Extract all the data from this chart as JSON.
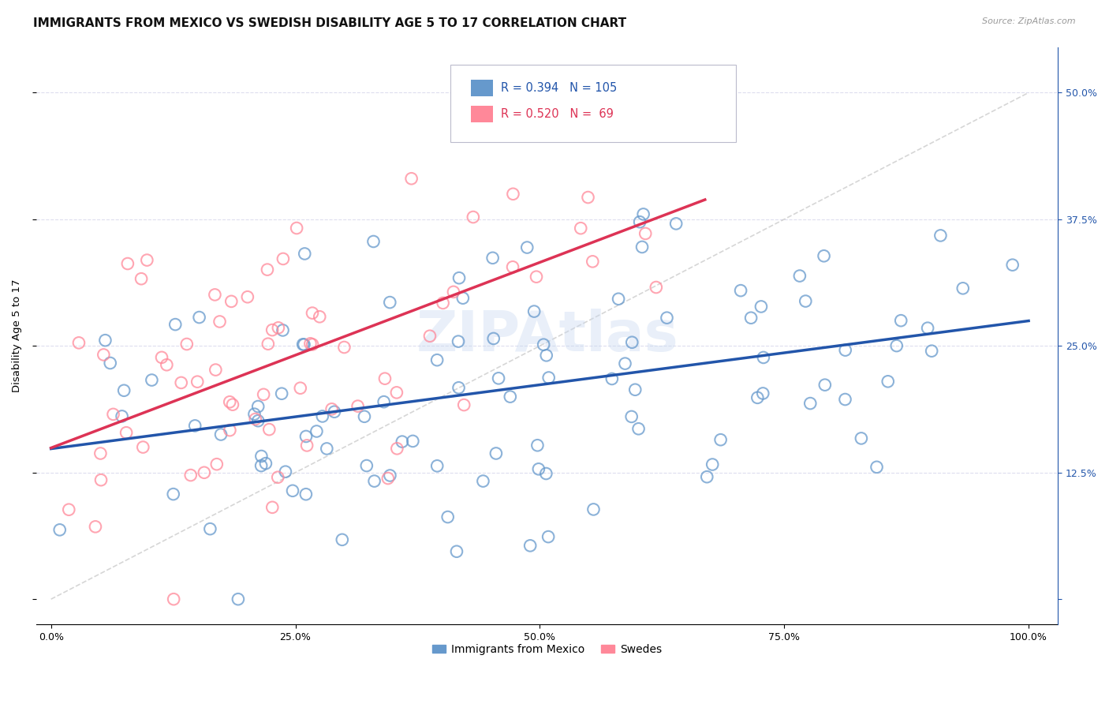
{
  "title": "IMMIGRANTS FROM MEXICO VS SWEDISH DISABILITY AGE 5 TO 17 CORRELATION CHART",
  "source": "Source: ZipAtlas.com",
  "ylabel": "Disability Age 5 to 17",
  "ytick_vals": [
    0.0,
    0.125,
    0.25,
    0.375,
    0.5
  ],
  "ytick_right_labels": [
    "",
    "12.5%",
    "25.0%",
    "37.5%",
    "50.0%"
  ],
  "xtick_vals": [
    0.0,
    0.25,
    0.5,
    0.75,
    1.0
  ],
  "xtick_labels": [
    "0.0%",
    "25.0%",
    "50.0%",
    "75.0%",
    "100.0%"
  ],
  "legend_label1": "Immigrants from Mexico",
  "legend_label2": "Swedes",
  "R1": 0.394,
  "N1": 105,
  "R2": 0.52,
  "N2": 69,
  "color_blue": "#6699CC",
  "color_pink": "#FF8899",
  "color_blue_line": "#2255AA",
  "color_pink_line": "#DD3355",
  "color_diag": "#BBBBBB",
  "color_grid": "#DDDDEE",
  "watermark_color": "#C8D8F0",
  "watermark_text": "ZIPAtlas",
  "background": "#FFFFFF",
  "title_fontsize": 11,
  "axis_label_fontsize": 9.5,
  "tick_fontsize": 9,
  "legend_fontsize": 10,
  "scatter_size": 110,
  "scatter_lw": 1.5,
  "scatter_alpha": 0.75,
  "line_width": 2.5,
  "blue_seed": 42,
  "pink_seed": 17
}
